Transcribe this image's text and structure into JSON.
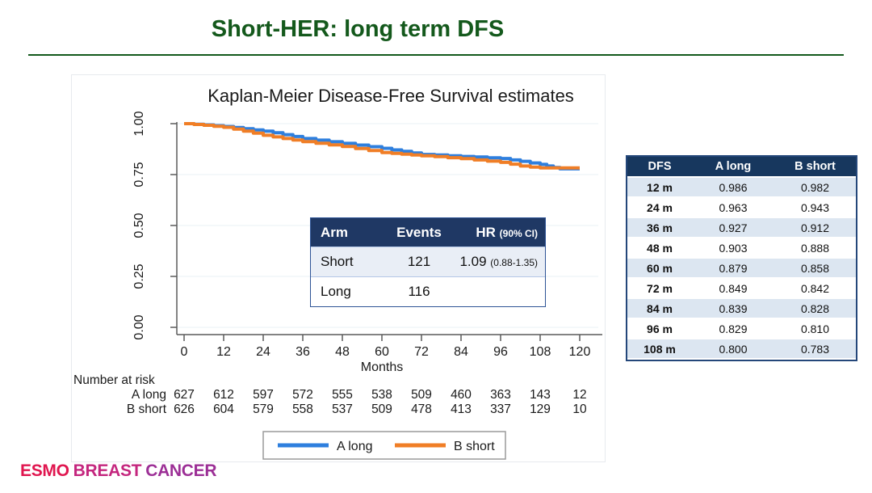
{
  "slide": {
    "title": "Short-HER: long term DFS",
    "title_color": "#14591c"
  },
  "logo": {
    "words": [
      {
        "text": "ESMO",
        "color": "#e0164f"
      },
      {
        "text": "BREAST",
        "color": "#c4267e"
      },
      {
        "text": "CANCER",
        "color": "#9c2f96"
      }
    ]
  },
  "chart_data": {
    "type": "line",
    "subtype": "kaplan-meier-step",
    "title": "Kaplan-Meier Disease-Free Survival estimates",
    "xlabel": "Months",
    "ylabel": "",
    "xlim": [
      0,
      120
    ],
    "ylim": [
      0.0,
      1.0
    ],
    "x_ticks": [
      0,
      12,
      24,
      36,
      48,
      60,
      72,
      84,
      96,
      108,
      120
    ],
    "y_ticks": [
      "1.00",
      "0.75",
      "0.50",
      "0.25",
      "0.00"
    ],
    "y_tick_values": [
      1.0,
      0.75,
      0.5,
      0.25,
      0.0
    ],
    "grid": true,
    "grid_color": "#e9f0f5",
    "legend_position": "bottom",
    "series": [
      {
        "name": "A long",
        "color": "#2e7fde",
        "points": [
          [
            0,
            1.0
          ],
          [
            3,
            0.997
          ],
          [
            6,
            0.994
          ],
          [
            9,
            0.99
          ],
          [
            12,
            0.986
          ],
          [
            15,
            0.981
          ],
          [
            18,
            0.975
          ],
          [
            21,
            0.969
          ],
          [
            24,
            0.963
          ],
          [
            27,
            0.955
          ],
          [
            30,
            0.946
          ],
          [
            33,
            0.937
          ],
          [
            36,
            0.927
          ],
          [
            40,
            0.919
          ],
          [
            44,
            0.911
          ],
          [
            48,
            0.903
          ],
          [
            52,
            0.895
          ],
          [
            56,
            0.887
          ],
          [
            60,
            0.879
          ],
          [
            63,
            0.871
          ],
          [
            66,
            0.864
          ],
          [
            69,
            0.856
          ],
          [
            72,
            0.849
          ],
          [
            76,
            0.846
          ],
          [
            80,
            0.842
          ],
          [
            84,
            0.839
          ],
          [
            88,
            0.836
          ],
          [
            92,
            0.832
          ],
          [
            96,
            0.829
          ],
          [
            99,
            0.822
          ],
          [
            102,
            0.815
          ],
          [
            105,
            0.807
          ],
          [
            108,
            0.8
          ],
          [
            110,
            0.792
          ],
          [
            112,
            0.785
          ],
          [
            114,
            0.778
          ],
          [
            120,
            0.778
          ]
        ]
      },
      {
        "name": "B short",
        "color": "#f07e26",
        "points": [
          [
            0,
            1.0
          ],
          [
            3,
            0.996
          ],
          [
            6,
            0.992
          ],
          [
            9,
            0.987
          ],
          [
            12,
            0.982
          ],
          [
            15,
            0.973
          ],
          [
            18,
            0.963
          ],
          [
            21,
            0.953
          ],
          [
            24,
            0.943
          ],
          [
            27,
            0.935
          ],
          [
            30,
            0.927
          ],
          [
            33,
            0.92
          ],
          [
            36,
            0.912
          ],
          [
            40,
            0.904
          ],
          [
            44,
            0.896
          ],
          [
            48,
            0.888
          ],
          [
            52,
            0.878
          ],
          [
            56,
            0.868
          ],
          [
            60,
            0.858
          ],
          [
            63,
            0.854
          ],
          [
            66,
            0.85
          ],
          [
            69,
            0.846
          ],
          [
            72,
            0.842
          ],
          [
            76,
            0.838
          ],
          [
            80,
            0.833
          ],
          [
            84,
            0.828
          ],
          [
            88,
            0.822
          ],
          [
            92,
            0.816
          ],
          [
            96,
            0.81
          ],
          [
            99,
            0.801
          ],
          [
            102,
            0.792
          ],
          [
            105,
            0.787
          ],
          [
            108,
            0.783
          ],
          [
            120,
            0.783
          ]
        ]
      }
    ]
  },
  "inset_table": {
    "header": {
      "arm": "Arm",
      "events": "Events",
      "hr": "HR",
      "hr_ci": "(90% CI)"
    },
    "header_bg": "#1f3864",
    "rows": [
      {
        "arm": "Short",
        "events": "121",
        "hr": "1.09",
        "hr_ci": "(0.88-1.35)"
      },
      {
        "arm": "Long",
        "events": "116",
        "hr": "",
        "hr_ci": ""
      }
    ]
  },
  "dfs_table": {
    "headers": [
      "DFS",
      "A long",
      "B short"
    ],
    "header_bg": "#17375e",
    "alt_row_bg": "#dce6f1",
    "rows": [
      [
        "12 m",
        "0.986",
        "0.982"
      ],
      [
        "24 m",
        "0.963",
        "0.943"
      ],
      [
        "36 m",
        "0.927",
        "0.912"
      ],
      [
        "48 m",
        "0.903",
        "0.888"
      ],
      [
        "60 m",
        "0.879",
        "0.858"
      ],
      [
        "72 m",
        "0.849",
        "0.842"
      ],
      [
        "84 m",
        "0.839",
        "0.828"
      ],
      [
        "96 m",
        "0.829",
        "0.810"
      ],
      [
        "108 m",
        "0.800",
        "0.783"
      ]
    ]
  },
  "risk_table": {
    "label": "Number at risk",
    "rows": [
      {
        "name": "A long",
        "values": [
          627,
          612,
          597,
          572,
          555,
          538,
          509,
          460,
          363,
          143,
          12
        ]
      },
      {
        "name": "B short",
        "values": [
          626,
          604,
          579,
          558,
          537,
          509,
          478,
          413,
          337,
          129,
          10
        ]
      }
    ]
  },
  "legend": {
    "items": [
      {
        "label": "A long",
        "color": "#2e7fde"
      },
      {
        "label": "B short",
        "color": "#f07e26"
      }
    ]
  }
}
